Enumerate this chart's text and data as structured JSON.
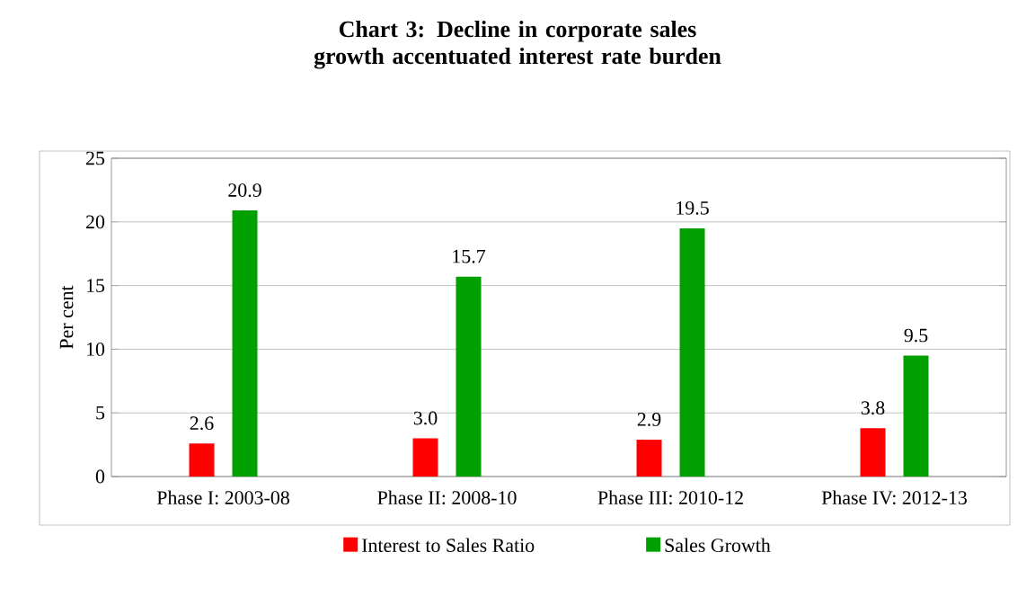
{
  "chart_data": {
    "type": "bar",
    "title": "Chart 3: Decline in corporate sales growth accentuated interest rate burden",
    "ylabel": "Per cent",
    "categories": [
      "Phase I: 2003-08",
      "Phase II: 2008-10",
      "Phase III: 2010-12",
      "Phase IV: 2012-13"
    ],
    "series": [
      {
        "name": "Interest to Sales Ratio",
        "color": "#ff0000",
        "values": [
          2.6,
          3.0,
          2.9,
          3.8
        ],
        "value_labels": [
          "2.6",
          "3.0",
          "2.9",
          "3.8"
        ]
      },
      {
        "name": "Sales Growth",
        "color": "#00a000",
        "values": [
          20.9,
          15.7,
          19.5,
          9.5
        ],
        "value_labels": [
          "20.9",
          "15.7",
          "19.5",
          "9.5"
        ]
      }
    ],
    "ylim": [
      0,
      25
    ],
    "yticks": [
      0,
      5,
      10,
      15,
      20,
      25
    ],
    "grid": "y",
    "legend": "bottom"
  }
}
